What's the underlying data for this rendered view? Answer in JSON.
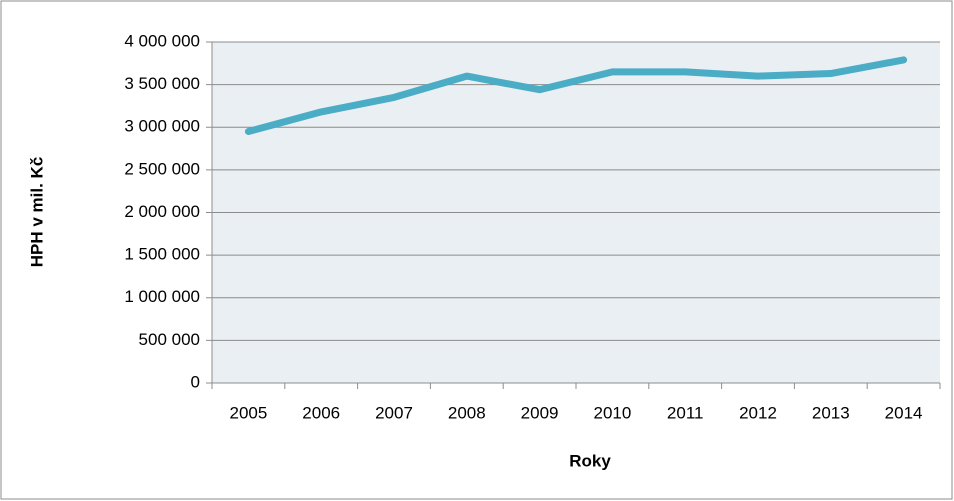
{
  "chart_data": {
    "type": "line",
    "x_label": "Roky",
    "y_label": "HPH v mil. Kč",
    "categories": [
      "2005",
      "2006",
      "2007",
      "2008",
      "2009",
      "2010",
      "2011",
      "2012",
      "2013",
      "2014"
    ],
    "series": [
      {
        "color": "#4bacc6",
        "values": [
          2950000,
          3180000,
          3350000,
          3600000,
          3440000,
          3650000,
          3650000,
          3600000,
          3630000,
          3790000
        ]
      }
    ],
    "ylim": [
      0,
      4000000
    ],
    "yticks": [
      {
        "value": 0,
        "label": "0"
      },
      {
        "value": 500000,
        "label": "500 000"
      },
      {
        "value": 1000000,
        "label": "1 000 000"
      },
      {
        "value": 1500000,
        "label": "1 500 000"
      },
      {
        "value": 2000000,
        "label": "2 000 000"
      },
      {
        "value": 2500000,
        "label": "2 500 000"
      },
      {
        "value": 3000000,
        "label": "3 000 000"
      },
      {
        "value": 3500000,
        "label": "3 500 000"
      },
      {
        "value": 4000000,
        "label": "4 000 000"
      }
    ],
    "grid": true
  }
}
